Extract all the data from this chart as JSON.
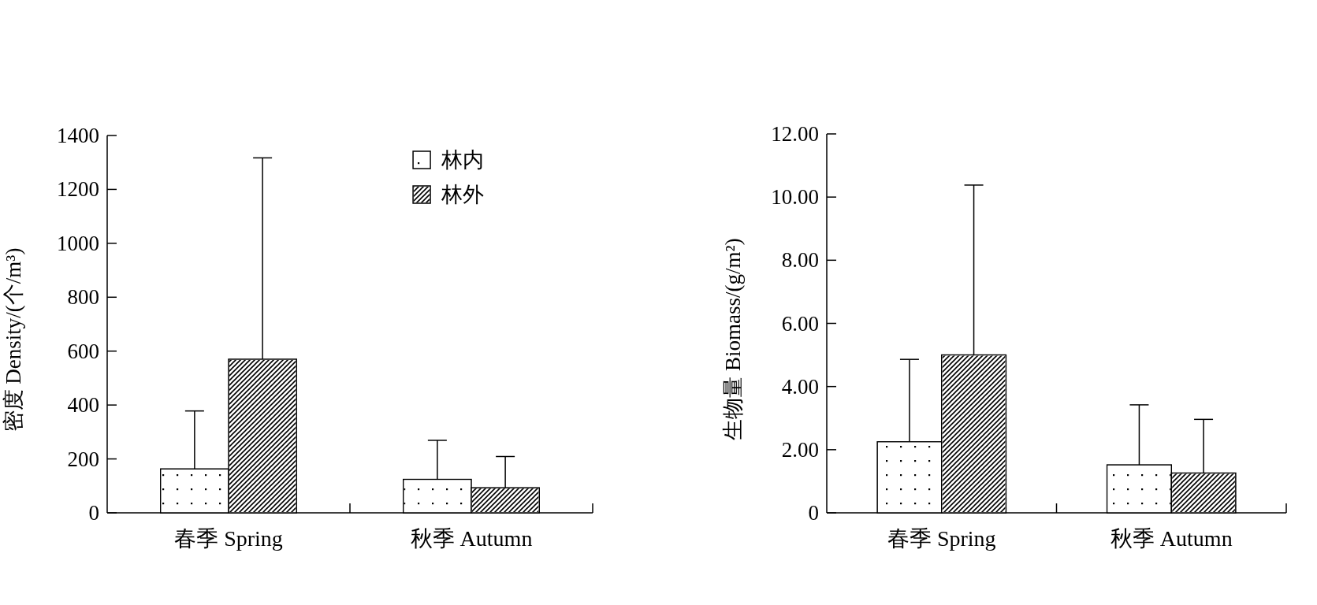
{
  "chart_data": [
    {
      "type": "bar",
      "categories": [
        "春季 Spring",
        "秋季 Autumn"
      ],
      "ylabel": "密度 Density/(个/m³)",
      "ylim": [
        0,
        1400
      ],
      "yticks": [
        0,
        200,
        400,
        600,
        800,
        1000,
        1200,
        1400
      ],
      "legend": "top right",
      "grid": false,
      "series": [
        {
          "name": "林内",
          "color": "#ffffff",
          "values": [
            163,
            124
          ],
          "errors": [
            [
              163,
              378
            ],
            [
              124,
              269
            ]
          ]
        },
        {
          "name": "林外",
          "color": "#ffffff",
          "values": [
            570,
            93
          ],
          "errors": [
            [
              570,
              1317
            ],
            [
              93,
              209
            ]
          ]
        }
      ]
    },
    {
      "type": "bar",
      "categories": [
        "春季 Spring",
        "秋季 Autumn"
      ],
      "ylabel": "生物量 Biomass/(g/m²)",
      "ylim": [
        0,
        12
      ],
      "yticks": [
        0,
        {
          "value": 2,
          "label": "2.00"
        },
        {
          "value": 4,
          "label": "4.00"
        },
        {
          "value": 6,
          "label": "6.00"
        },
        {
          "value": 8,
          "label": "8.00"
        },
        {
          "value": 10,
          "label": "10.00"
        },
        {
          "value": 12,
          "label": "12.00"
        }
      ],
      "legend": false,
      "grid": false,
      "series": [
        {
          "color": "#ffffff",
          "values": [
            2.25,
            1.52
          ],
          "errors": [
            [
              2.25,
              4.86
            ],
            [
              1.52,
              3.42
            ]
          ]
        },
        {
          "color": "#ffffff",
          "values": [
            5.0,
            1.26
          ],
          "errors": [
            [
              5.0,
              10.38
            ],
            [
              1.26,
              2.96
            ]
          ]
        }
      ]
    }
  ]
}
